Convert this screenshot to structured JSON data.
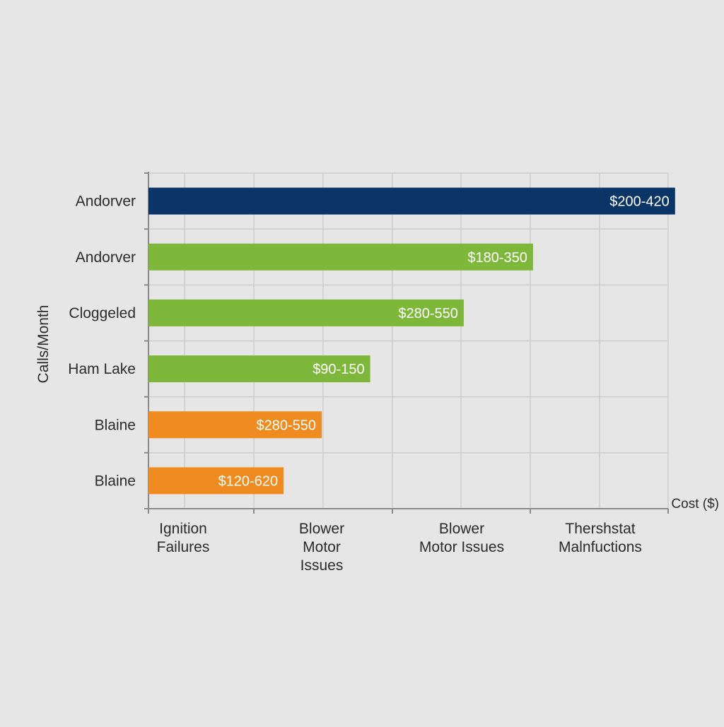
{
  "chart_data": {
    "type": "bar",
    "orientation": "horizontal",
    "title": "",
    "xlabel": "Cost ($)",
    "ylabel": "Calls/Month",
    "grid": true,
    "categories": [
      "Andorver",
      "Andorver",
      "Cloggeled",
      "Ham Lake",
      "Blaine",
      "Blaine"
    ],
    "x_tick_labels": [
      "Ignition Failures",
      "Blower Motor Issues",
      "Blower Motor Issues",
      "Thershstat Malnfuctions"
    ],
    "xlim": [
      0,
      7.5
    ],
    "values": [
      7.6,
      5.55,
      4.55,
      3.2,
      2.5,
      1.95
    ],
    "bar_labels": [
      "$200-420",
      "$180-350",
      "$280-550",
      "$90-150",
      "$280-550",
      "$120-620"
    ],
    "bar_colors": [
      "#0b3566",
      "#7db83a",
      "#7db83a",
      "#7db83a",
      "#f08c1f",
      "#f08c1f"
    ]
  }
}
